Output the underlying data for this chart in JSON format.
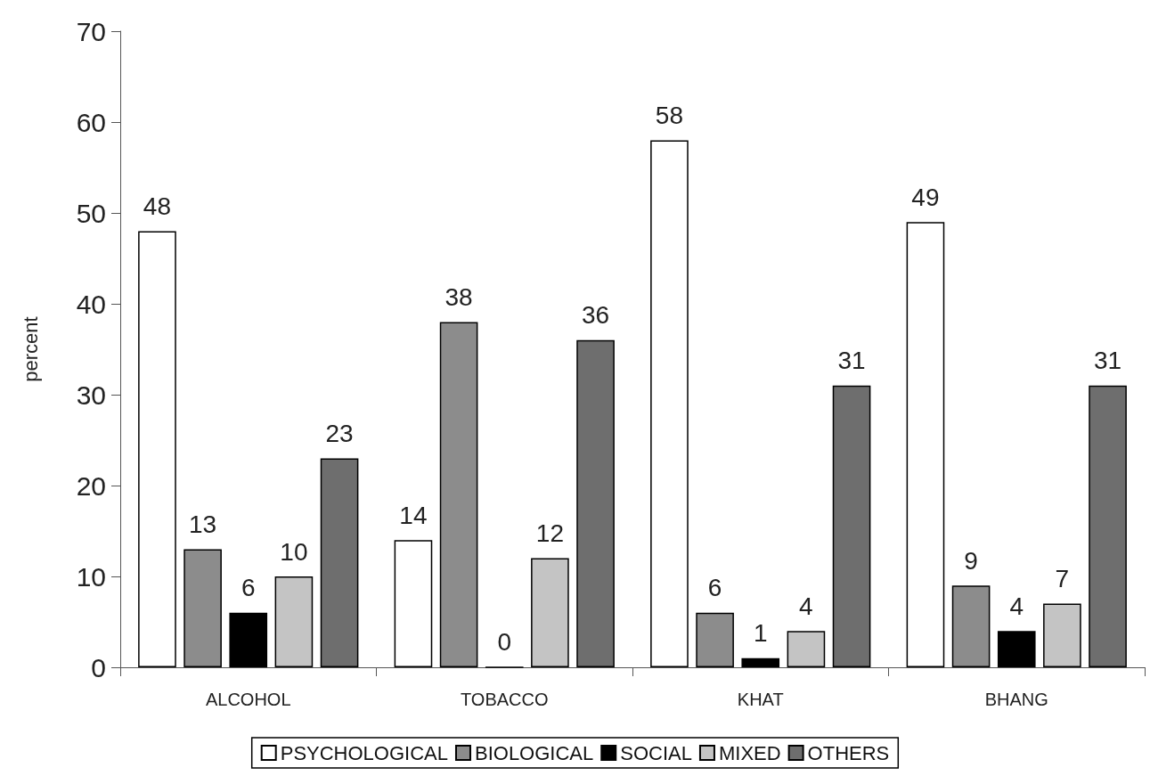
{
  "chart_data": {
    "type": "bar",
    "ylabel": "percent",
    "categories": [
      "ALCOHOL",
      "TOBACCO",
      "KHAT",
      "BHANG"
    ],
    "series": [
      {
        "name": "PSYCHOLOGICAL",
        "color": "#ffffff",
        "values": [
          48,
          14,
          58,
          49
        ]
      },
      {
        "name": "BIOLOGICAL",
        "color": "#8c8c8c",
        "values": [
          13,
          38,
          6,
          9
        ]
      },
      {
        "name": "SOCIAL",
        "color": "#000000",
        "values": [
          6,
          0,
          1,
          4
        ]
      },
      {
        "name": "MIXED",
        "color": "#c4c4c4",
        "values": [
          10,
          12,
          4,
          7
        ]
      },
      {
        "name": "OTHERS",
        "color": "#6e6e6e",
        "values": [
          23,
          36,
          31,
          31
        ]
      }
    ],
    "ylim": [
      0,
      70
    ],
    "yticks": [
      0,
      10,
      20,
      30,
      40,
      50,
      60,
      70
    ],
    "grid": false,
    "legend": "bottom",
    "data_labels": true
  }
}
